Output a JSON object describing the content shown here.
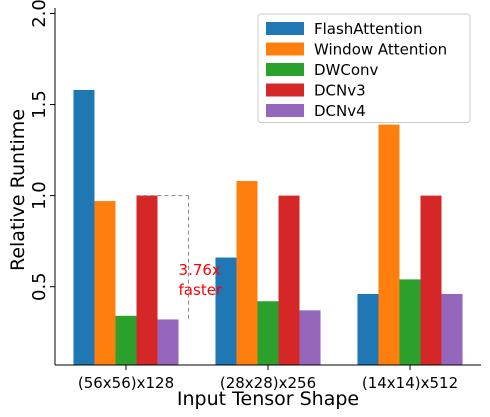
{
  "chart_data": {
    "type": "bar",
    "categories": [
      "(56x56)x128",
      "(28x28)x256",
      "(14x14)x512"
    ],
    "series": [
      {
        "name": "FlashAttention",
        "color": "#1f77b4",
        "values": [
          1.58,
          0.66,
          0.46
        ]
      },
      {
        "name": "Window Attention",
        "color": "#ff7f0e",
        "values": [
          0.97,
          1.08,
          1.39
        ]
      },
      {
        "name": "DWConv",
        "color": "#2ca02c",
        "values": [
          0.34,
          0.42,
          0.54
        ]
      },
      {
        "name": "DCNv3",
        "color": "#d62728",
        "values": [
          1.0,
          1.0,
          1.0
        ]
      },
      {
        "name": "DCNv4",
        "color": "#9467bd",
        "values": [
          0.32,
          0.37,
          0.46
        ]
      }
    ],
    "ylim": [
      0.07,
      2.03
    ],
    "yticks": [
      0.5,
      1.0,
      1.5,
      2.0
    ],
    "ytick_labels": [
      "0.5",
      "1.0",
      "1.5",
      "2.0"
    ],
    "ylabel": "Relative Runtime",
    "xlabel": "Input Tensor Shape",
    "annotation_lines": [
      "3.76x",
      "faster"
    ],
    "annotation_color": "#ff0000",
    "legend": "upper right"
  }
}
